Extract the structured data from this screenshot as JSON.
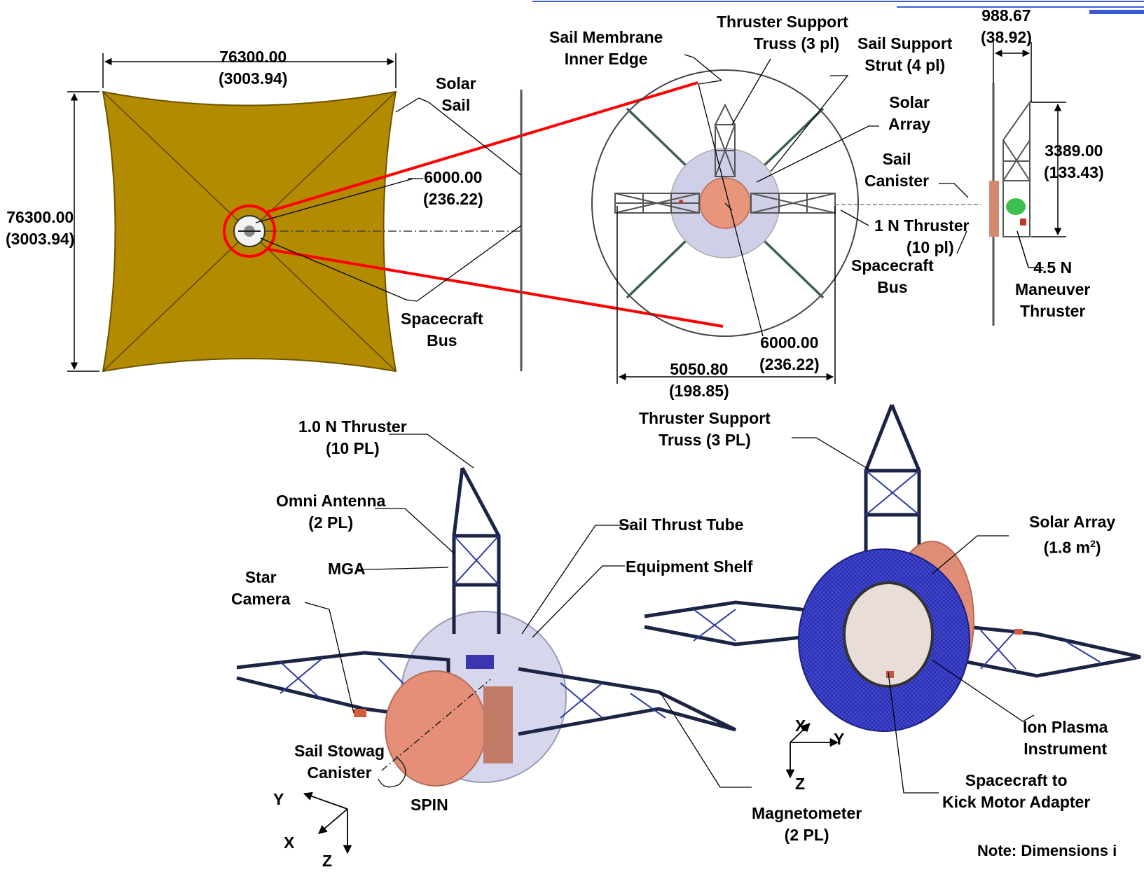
{
  "dimensions": {
    "sail_width": {
      "mm": "76300.00",
      "in": "(3003.94)"
    },
    "sail_height": {
      "mm": "76300.00",
      "in": "(3003.94)"
    },
    "inner_diameter": {
      "mm": "6000.00",
      "in": "(236.22)"
    },
    "inner_diameter_bottom": {
      "mm": "6000.00",
      "in": "(236.22)"
    },
    "truss_span": {
      "mm": "5050.80",
      "in": "(198.85)"
    },
    "side_depth": {
      "mm": "988.67",
      "in": "(38.92)"
    },
    "side_height": {
      "mm": "3389.00",
      "in": "(133.43)"
    }
  },
  "labels": {
    "solar_sail": [
      "Solar",
      "Sail"
    ],
    "spacecraft_bus_left": [
      "Spacecraft",
      "Bus"
    ],
    "sail_membrane": [
      "Sail Membrane",
      "Inner Edge"
    ],
    "thruster_support_truss_top": [
      "Thruster Support",
      "Truss (3 pl)"
    ],
    "sail_support_strut": [
      "Sail Support",
      "Strut (4 pl)"
    ],
    "solar_array_top": [
      "Solar",
      "Array"
    ],
    "sail_canister": [
      "Sail",
      "Canister"
    ],
    "one_n_thruster_top": [
      "1 N Thruster",
      "(10 pl)"
    ],
    "spacecraft_bus_right": [
      "Spacecraft",
      "Bus"
    ],
    "maneuver_thruster": [
      "4.5 N",
      "Maneuver",
      "Thruster"
    ],
    "thruster_10pl": [
      "1.0 N Thruster",
      "(10 PL)"
    ],
    "thruster_support_truss_bottom": [
      "Thruster Support",
      "Truss (3 PL)"
    ],
    "omni_antenna": [
      "Omni Antenna",
      "(2 PL)"
    ],
    "mga": "MGA",
    "star_camera": [
      "Star",
      "Camera"
    ],
    "sail_thrust_tube": "Sail Thrust Tube",
    "equipment_shelf": "Equipment Shelf",
    "solar_array_bottom": [
      "Solar Array",
      "(1.8 m"
    ],
    "solar_array_sup": "2",
    "solar_array_close": ")",
    "sail_stowage": [
      "Sail Stowag",
      "Canister"
    ],
    "spin": "SPIN",
    "ion_plasma": [
      "Ion Plasma",
      "Instrument"
    ],
    "kick_motor": [
      "Spacecraft to",
      "Kick Motor Adapter"
    ],
    "magnetometer": [
      "Magnetometer",
      "(2 PL)"
    ],
    "note": "Note: Dimensions i"
  },
  "axes": {
    "left": {
      "y": "Y",
      "x": "X",
      "z": "Z"
    },
    "right": {
      "x": "X",
      "y": "Y",
      "z": "Z"
    }
  },
  "colors": {
    "sail": "#b38b00",
    "callout": "#ff0000",
    "bus": "#e8836c",
    "truss": "#1c2444",
    "blue_disc": "#2b2fb0",
    "header_rule": "#3a5bd0"
  }
}
